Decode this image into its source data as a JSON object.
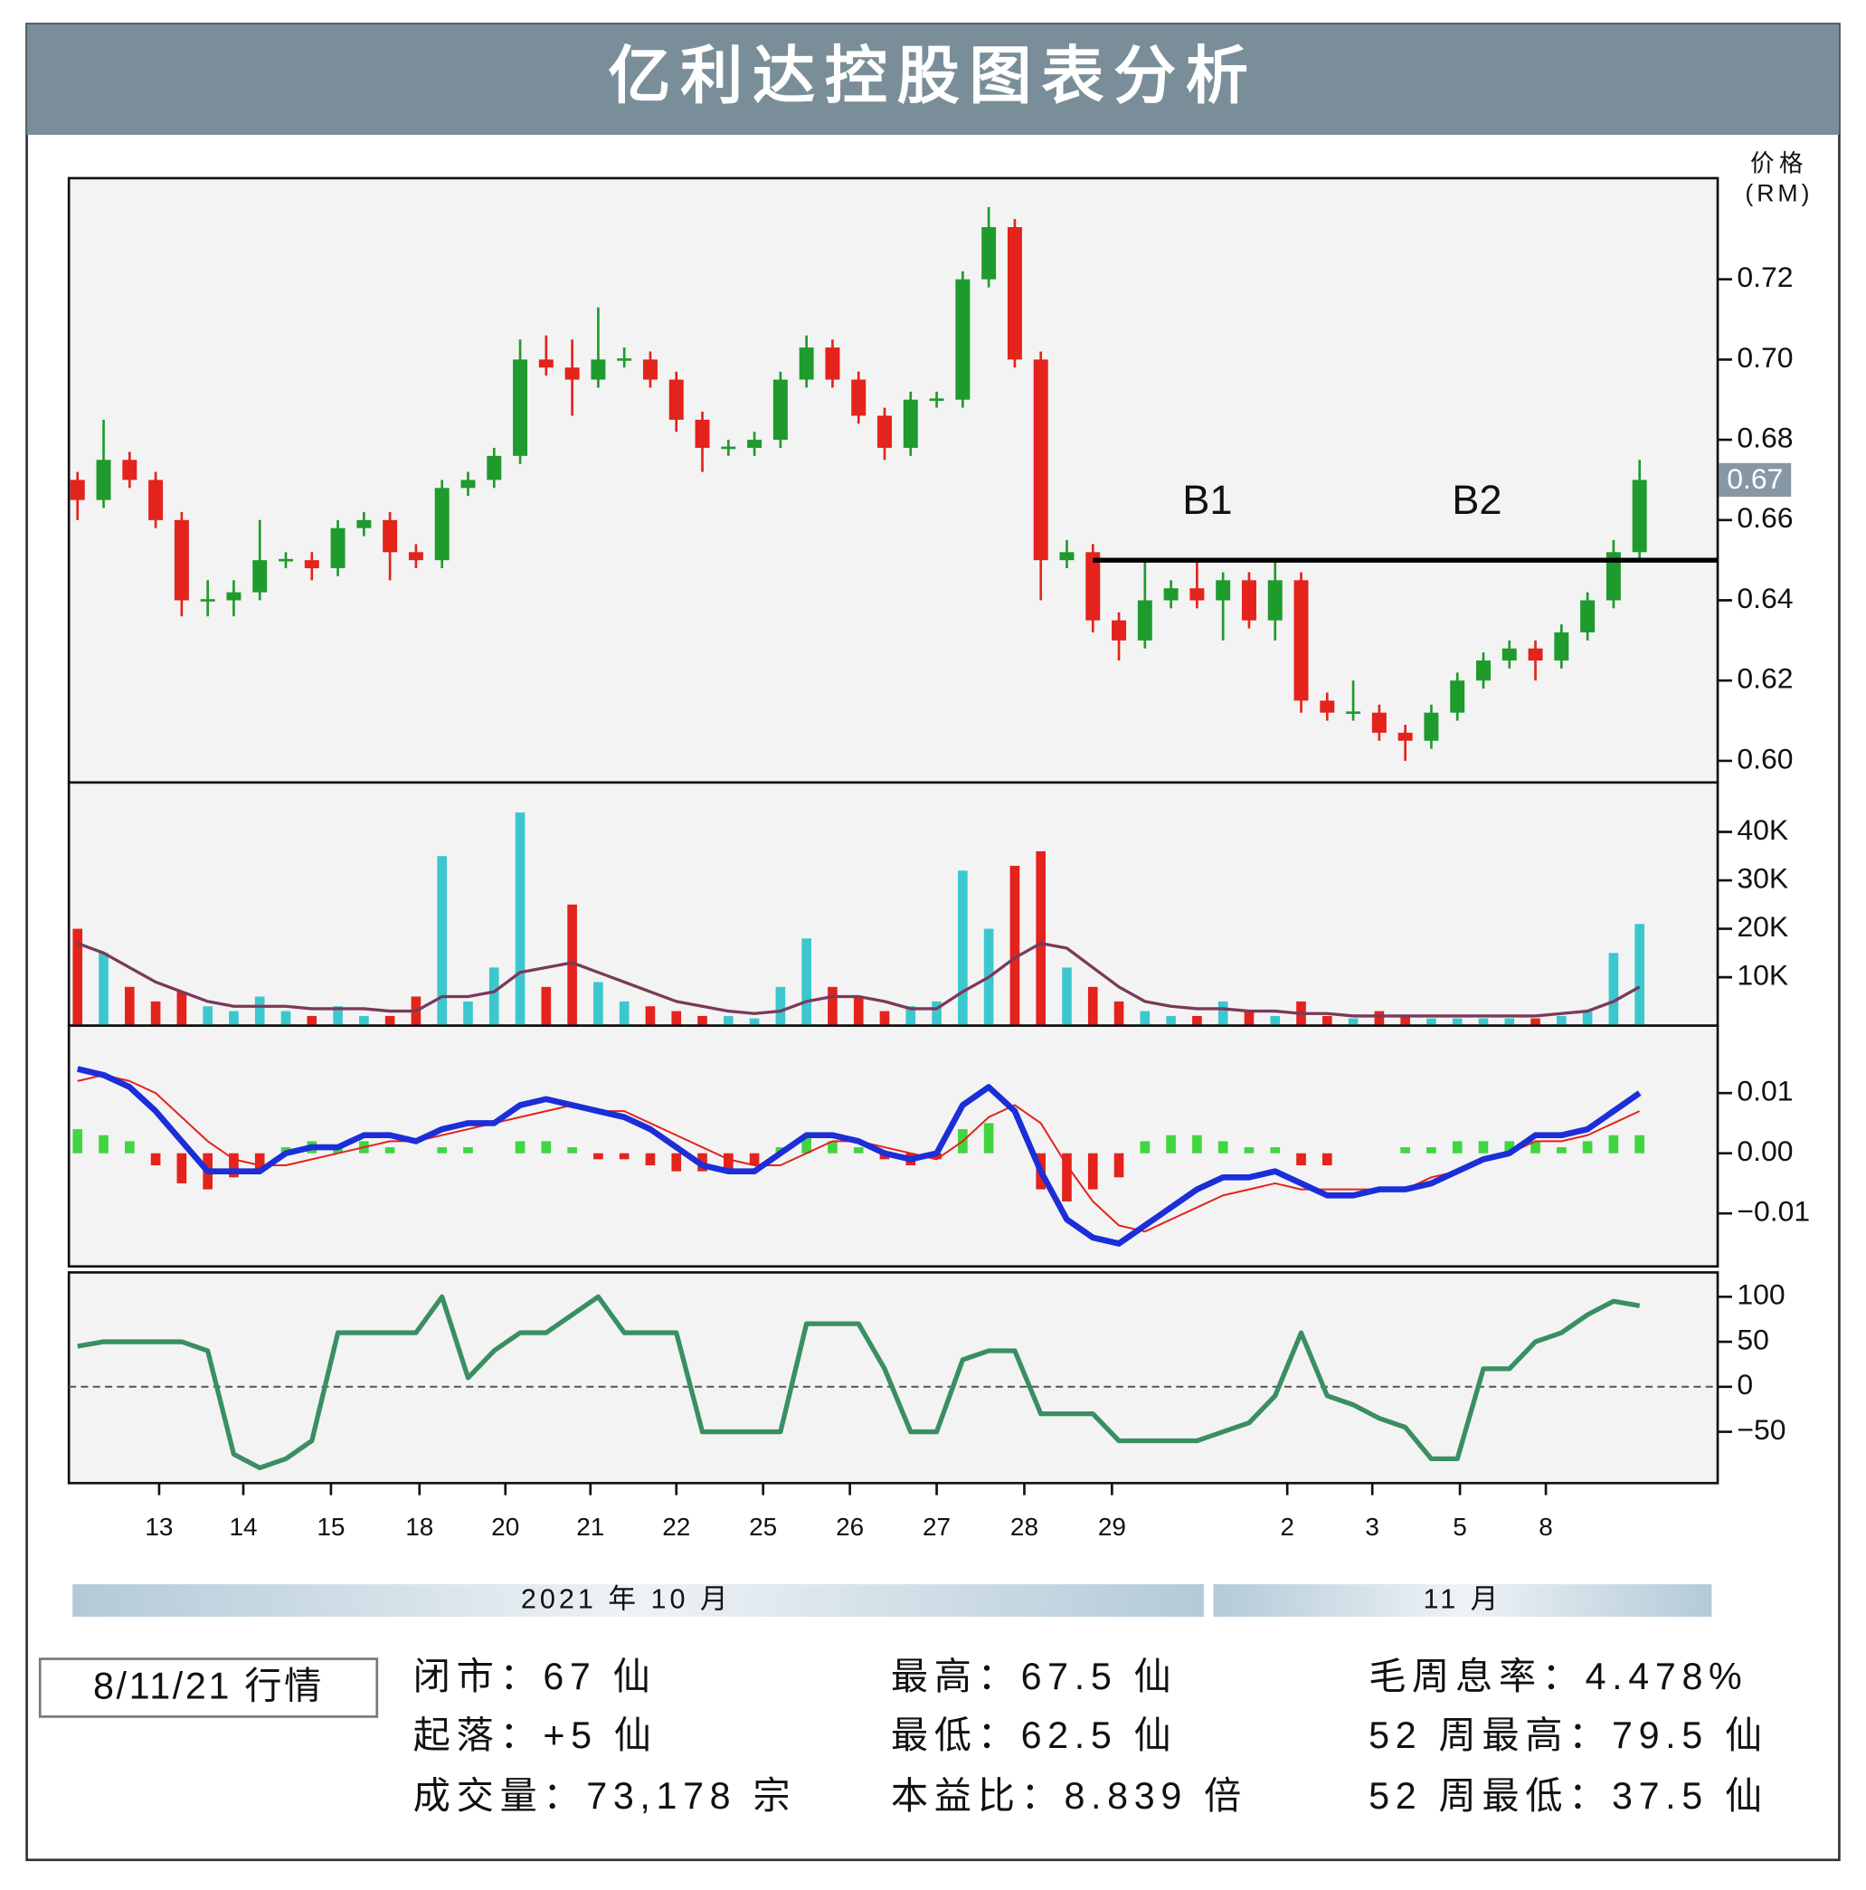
{
  "header": {
    "title": "亿利达控股图表分析"
  },
  "chart_data": [
    {
      "type": "candlestick",
      "x": [
        0,
        3,
        6,
        9,
        12,
        15,
        18,
        21,
        24,
        27,
        30,
        33,
        36,
        39,
        42,
        45,
        48,
        51,
        54,
        57,
        60,
        63,
        66,
        69,
        72,
        75,
        78,
        81,
        84,
        87,
        90,
        93,
        96,
        99,
        102,
        105,
        108,
        111,
        114,
        117,
        120,
        123,
        126,
        129,
        132,
        135,
        138,
        141,
        144,
        147,
        150,
        153,
        156,
        159,
        162,
        165,
        168,
        171,
        174,
        177,
        180
      ],
      "open": [
        0.67,
        0.665,
        0.675,
        0.67,
        0.66,
        0.64,
        0.64,
        0.642,
        0.65,
        0.65,
        0.648,
        0.658,
        0.66,
        0.652,
        0.65,
        0.668,
        0.67,
        0.676,
        0.7,
        0.698,
        0.695,
        0.7,
        0.7,
        0.695,
        0.685,
        0.678,
        0.678,
        0.68,
        0.695,
        0.703,
        0.695,
        0.686,
        0.678,
        0.69,
        0.69,
        0.72,
        0.733,
        0.7,
        0.65,
        0.652,
        0.635,
        0.63,
        0.64,
        0.643,
        0.64,
        0.645,
        0.635,
        0.645,
        0.615,
        0.612,
        0.612,
        0.607,
        0.605,
        0.612,
        0.62,
        0.625,
        0.628,
        0.625,
        0.632,
        0.64,
        0.652
      ],
      "high": [
        0.672,
        0.685,
        0.677,
        0.672,
        0.662,
        0.645,
        0.645,
        0.66,
        0.652,
        0.652,
        0.66,
        0.662,
        0.662,
        0.654,
        0.67,
        0.672,
        0.678,
        0.705,
        0.706,
        0.705,
        0.713,
        0.703,
        0.702,
        0.697,
        0.687,
        0.68,
        0.682,
        0.697,
        0.706,
        0.705,
        0.697,
        0.688,
        0.692,
        0.692,
        0.722,
        0.738,
        0.735,
        0.702,
        0.655,
        0.654,
        0.637,
        0.65,
        0.645,
        0.65,
        0.647,
        0.647,
        0.65,
        0.647,
        0.617,
        0.62,
        0.614,
        0.609,
        0.614,
        0.622,
        0.627,
        0.63,
        0.63,
        0.634,
        0.642,
        0.655,
        0.675
      ],
      "low": [
        0.66,
        0.663,
        0.668,
        0.658,
        0.636,
        0.636,
        0.636,
        0.64,
        0.648,
        0.645,
        0.646,
        0.656,
        0.645,
        0.648,
        0.648,
        0.666,
        0.668,
        0.674,
        0.696,
        0.686,
        0.693,
        0.698,
        0.693,
        0.682,
        0.672,
        0.676,
        0.676,
        0.678,
        0.693,
        0.693,
        0.684,
        0.675,
        0.676,
        0.688,
        0.688,
        0.718,
        0.698,
        0.64,
        0.648,
        0.632,
        0.625,
        0.628,
        0.638,
        0.638,
        0.63,
        0.633,
        0.63,
        0.612,
        0.61,
        0.61,
        0.605,
        0.6,
        0.603,
        0.61,
        0.618,
        0.623,
        0.62,
        0.623,
        0.63,
        0.638,
        0.65
      ],
      "close": [
        0.665,
        0.675,
        0.67,
        0.66,
        0.64,
        0.64,
        0.642,
        0.65,
        0.65,
        0.648,
        0.658,
        0.66,
        0.652,
        0.65,
        0.668,
        0.67,
        0.676,
        0.7,
        0.698,
        0.695,
        0.7,
        0.7,
        0.695,
        0.685,
        0.678,
        0.678,
        0.68,
        0.695,
        0.703,
        0.695,
        0.686,
        0.678,
        0.69,
        0.69,
        0.72,
        0.733,
        0.7,
        0.65,
        0.652,
        0.635,
        0.63,
        0.64,
        0.643,
        0.64,
        0.645,
        0.635,
        0.645,
        0.615,
        0.612,
        0.612,
        0.607,
        0.605,
        0.612,
        0.62,
        0.625,
        0.628,
        0.625,
        0.632,
        0.64,
        0.652,
        0.67
      ],
      "up_color": "#1e9b2c",
      "down_color": "#e3231c",
      "xlim": [
        -1,
        189
      ],
      "ylim": [
        0.5946,
        0.7452
      ],
      "yticks": [
        {
          "value": 0.6,
          "label": "0.60"
        },
        0.62,
        0.64,
        0.66,
        0.68,
        {
          "value": 0.7,
          "label": "0.70"
        },
        0.72
      ],
      "y_label_top": "价格",
      "y_label_bottom": "(RM)",
      "last_price": 0.67,
      "resistance": {
        "value": 0.65,
        "from_x": 117,
        "color": "#000000"
      },
      "annotations": [
        "B1",
        "B2"
      ]
    },
    {
      "type": "volume",
      "x": [
        0,
        3,
        6,
        9,
        12,
        15,
        18,
        21,
        24,
        27,
        30,
        33,
        36,
        39,
        42,
        45,
        48,
        51,
        54,
        57,
        60,
        63,
        66,
        69,
        72,
        75,
        78,
        81,
        84,
        87,
        90,
        93,
        96,
        99,
        102,
        105,
        108,
        111,
        114,
        117,
        120,
        123,
        126,
        129,
        132,
        135,
        138,
        141,
        144,
        147,
        150,
        153,
        156,
        159,
        162,
        165,
        168,
        171,
        174,
        177,
        180
      ],
      "values": [
        20000,
        15000,
        8000,
        5000,
        7000,
        4000,
        3000,
        6000,
        3000,
        2000,
        4000,
        2000,
        2000,
        6000,
        35000,
        5000,
        12000,
        44000,
        8000,
        25000,
        9000,
        5000,
        4000,
        3000,
        2000,
        2000,
        1500,
        8000,
        18000,
        8000,
        6000,
        3000,
        4000,
        5000,
        32000,
        20000,
        33000,
        36000,
        12000,
        8000,
        5000,
        3000,
        2000,
        2000,
        5000,
        3000,
        2000,
        5000,
        2000,
        1500,
        3000,
        2000,
        1500,
        1500,
        1500,
        1500,
        1500,
        2000,
        3000,
        15000,
        21000
      ],
      "ma_values": [
        17000,
        15000,
        12000,
        9000,
        7000,
        5000,
        4000,
        4000,
        4000,
        3500,
        3500,
        3500,
        3000,
        3000,
        6000,
        6000,
        7000,
        11000,
        12000,
        13000,
        11000,
        9000,
        7000,
        5000,
        4000,
        3000,
        2500,
        3000,
        5000,
        6000,
        6000,
        5000,
        3500,
        3500,
        7000,
        10000,
        14000,
        17000,
        16000,
        12000,
        8000,
        5000,
        4000,
        3500,
        3500,
        3000,
        3000,
        2500,
        2500,
        2000,
        2000,
        2000,
        2000,
        2000,
        2000,
        2000,
        2000,
        2500,
        3000,
        5000,
        8000
      ],
      "up_color": "#3cc7cf",
      "down_color": "#e3231c",
      "ma_color": "#7a3a5a",
      "xlim": [
        -1,
        189
      ],
      "ylim": [
        0,
        50200
      ],
      "yticks": [
        {
          "value": 10000,
          "label": "10K"
        },
        {
          "value": 20000,
          "label": "20K"
        },
        {
          "value": 30000,
          "label": "30K"
        },
        {
          "value": 40000,
          "label": "40K"
        }
      ]
    },
    {
      "type": "macd",
      "x": [
        0,
        3,
        6,
        9,
        12,
        15,
        18,
        21,
        24,
        27,
        30,
        33,
        36,
        39,
        42,
        45,
        48,
        51,
        54,
        57,
        60,
        63,
        66,
        69,
        72,
        75,
        78,
        81,
        84,
        87,
        90,
        93,
        96,
        99,
        102,
        105,
        108,
        111,
        114,
        117,
        120,
        123,
        126,
        129,
        132,
        135,
        138,
        141,
        144,
        147,
        150,
        153,
        156,
        159,
        162,
        165,
        168,
        171,
        174,
        177,
        180
      ],
      "macd": [
        0.014,
        0.013,
        0.011,
        0.007,
        0.002,
        -0.003,
        -0.003,
        -0.003,
        0,
        0.001,
        0.001,
        0.003,
        0.003,
        0.002,
        0.004,
        0.005,
        0.005,
        0.008,
        0.009,
        0.008,
        0.007,
        0.006,
        0.004,
        0.001,
        -0.002,
        -0.003,
        -0.003,
        0,
        0.003,
        0.003,
        0.002,
        0,
        -0.001,
        0,
        0.008,
        0.011,
        0.007,
        -0.003,
        -0.011,
        -0.014,
        -0.015,
        -0.012,
        -0.009,
        -0.006,
        -0.004,
        -0.004,
        -0.003,
        -0.005,
        -0.007,
        -0.007,
        -0.006,
        -0.006,
        -0.005,
        -0.003,
        -0.001,
        0,
        0.003,
        0.003,
        0.004,
        0.007,
        0.01
      ],
      "signal": [
        0.012,
        0.013,
        0.012,
        0.01,
        0.006,
        0.002,
        -0.001,
        -0.002,
        -0.002,
        -0.001,
        0,
        0.001,
        0.002,
        0.002,
        0.003,
        0.004,
        0.005,
        0.006,
        0.007,
        0.008,
        0.007,
        0.007,
        0.005,
        0.003,
        0.001,
        -0.001,
        -0.002,
        -0.002,
        0,
        0.002,
        0.002,
        0.001,
        0,
        -0.001,
        0.002,
        0.006,
        0.008,
        0.005,
        -0.002,
        -0.008,
        -0.012,
        -0.013,
        -0.011,
        -0.009,
        -0.007,
        -0.006,
        -0.005,
        -0.006,
        -0.006,
        -0.006,
        -0.006,
        -0.006,
        -0.004,
        -0.003,
        -0.001,
        0,
        0.002,
        0.002,
        0.003,
        0.005,
        0.007
      ],
      "histogram": [
        0.004,
        0.003,
        0.002,
        -0.002,
        -0.005,
        -0.006,
        -0.004,
        -0.003,
        0.001,
        0.002,
        0.001,
        0.002,
        0.001,
        0,
        0.001,
        0.001,
        0,
        0.002,
        0.002,
        0.001,
        -0.001,
        -0.001,
        -0.002,
        -0.003,
        -0.003,
        -0.003,
        -0.002,
        0.001,
        0.003,
        0.002,
        0.001,
        -0.001,
        -0.002,
        -0.001,
        0.004,
        0.005,
        0,
        -0.006,
        -0.008,
        -0.006,
        -0.004,
        0.002,
        0.003,
        0.003,
        0.002,
        0.001,
        0.001,
        -0.002,
        -0.002,
        0,
        0,
        0.001,
        0.001,
        0.002,
        0.002,
        0.002,
        0.002,
        0.001,
        0.002,
        0.003,
        0.003
      ],
      "macd_color": "#1b2ed8",
      "signal_color": "#e3231c",
      "hist_up_color": "#3fd63f",
      "hist_down_color": "#e3231c",
      "xlim": [
        -1,
        189
      ],
      "ylim": [
        -0.0188,
        0.0212
      ],
      "yticks": [
        {
          "value": -0.01,
          "label": "−0.01"
        },
        {
          "value": 0,
          "label": "0.00"
        },
        0.01
      ]
    },
    {
      "type": "line",
      "x": [
        0,
        3,
        6,
        9,
        12,
        15,
        18,
        21,
        24,
        27,
        30,
        33,
        36,
        39,
        42,
        45,
        48,
        51,
        54,
        57,
        60,
        63,
        66,
        69,
        72,
        75,
        78,
        81,
        84,
        87,
        90,
        93,
        96,
        99,
        102,
        105,
        108,
        111,
        114,
        117,
        120,
        123,
        126,
        129,
        132,
        135,
        138,
        141,
        144,
        147,
        150,
        153,
        156,
        159,
        162,
        165,
        168,
        171,
        174,
        177,
        180
      ],
      "values": [
        45,
        50,
        50,
        50,
        50,
        40,
        -75,
        -90,
        -80,
        -60,
        60,
        60,
        60,
        60,
        100,
        10,
        40,
        60,
        60,
        80,
        100,
        60,
        60,
        60,
        -50,
        -50,
        -50,
        -50,
        70,
        70,
        70,
        20,
        -50,
        -50,
        30,
        40,
        40,
        -30,
        -30,
        -30,
        -60,
        -60,
        -60,
        -60,
        -50,
        -40,
        -10,
        60,
        -10,
        -20,
        -35,
        -45,
        -80,
        -80,
        20,
        20,
        50,
        60,
        80,
        95,
        90
      ],
      "color": "#3a8f62",
      "zero_line": true,
      "xlim": [
        -1,
        189
      ],
      "ylim": [
        -107,
        127
      ],
      "yticks": [
        {
          "value": -50,
          "label": "−50"
        },
        0,
        50,
        100
      ],
      "xticks": [
        {
          "value": 9.4,
          "label": "13"
        },
        {
          "value": 19.1,
          "label": "14"
        },
        {
          "value": 29.2,
          "label": "15"
        },
        {
          "value": 39.4,
          "label": "18"
        },
        {
          "value": 49.3,
          "label": "20"
        },
        {
          "value": 59.1,
          "label": "21"
        },
        {
          "value": 69,
          "label": "22"
        },
        {
          "value": 79,
          "label": "25"
        },
        {
          "value": 89,
          "label": "26"
        },
        {
          "value": 99,
          "label": "27"
        },
        {
          "value": 109.1,
          "label": "28"
        },
        {
          "value": 119.2,
          "label": "29"
        },
        {
          "value": 139.4,
          "label": "2"
        },
        {
          "value": 149.2,
          "label": "3"
        },
        {
          "value": 159.3,
          "label": "5"
        },
        {
          "value": 169.2,
          "label": "8"
        }
      ],
      "month_labels": [
        "2021 年 10 月",
        "11 月"
      ]
    }
  ],
  "info": {
    "date": "8/11/21 行情",
    "rows": [
      [
        "闭市：67 仙",
        "最高：67.5 仙",
        "毛周息率：4.478%"
      ],
      [
        "起落：+5 仙",
        "最低：62.5 仙",
        "52 周最高：79.5 仙"
      ],
      [
        "成交量：73,178 宗",
        "本益比：8.839 倍",
        "52 周最低：37.5 仙"
      ]
    ]
  }
}
